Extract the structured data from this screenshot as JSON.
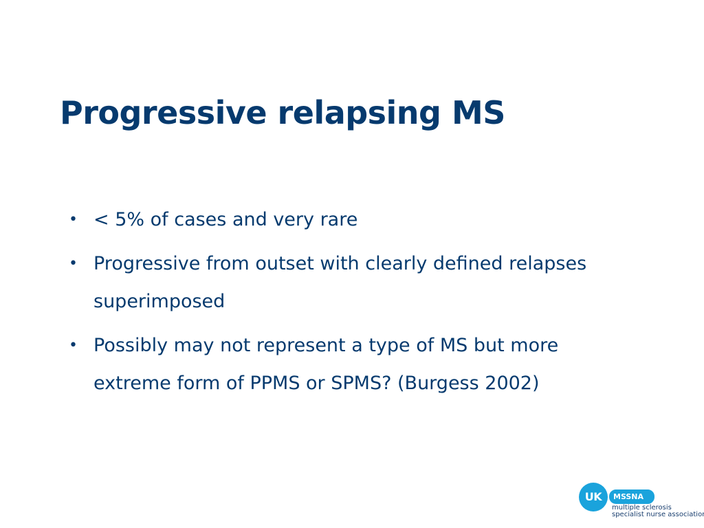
{
  "slide": {
    "title": "Progressive relapsing MS",
    "bullets": [
      {
        "marker": "•",
        "text": "< 5% of cases and very rare"
      },
      {
        "marker": "•",
        "text": "Progressive from outset with clearly defined relapses superimposed"
      },
      {
        "marker": "•",
        "text": "Possibly may not represent a type of MS but more extreme form of PPMS or SPMS? (Burgess 2002)"
      }
    ]
  },
  "logo": {
    "uk": "UK",
    "org": "MSSNA",
    "tagline_line1": "multiple sclerosis",
    "tagline_line2": "specialist nurse association"
  },
  "colors": {
    "text": "#063a6e",
    "logo_accent": "#1aa3dc",
    "background": "#ffffff"
  }
}
